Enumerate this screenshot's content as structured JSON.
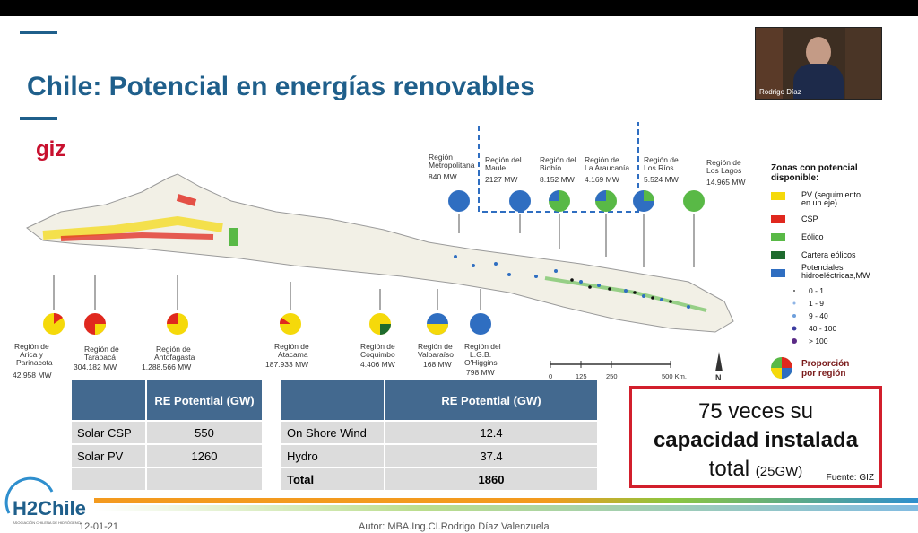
{
  "slide": {
    "title": "Chile: Potencial en energías renovables",
    "giz_logo": "giz",
    "date": "12-01-21",
    "author": "Autor: MBA.Ing.CI.Rodrigo Díaz Valenzuela",
    "h2chile_logo": "H2Chile",
    "h2chile_sub": "ASOCIACIÓN CHILENA DE HIDRÓGENO"
  },
  "webcam": {
    "participant_name": "Rodrigo Díaz"
  },
  "map": {
    "regions_bottom": [
      {
        "name": "Región de\nArica y\nParinacota",
        "mw": "42.958 MW",
        "icon": "pie-yellow-red"
      },
      {
        "name": "Región de\nTarapacá",
        "mw": "304.182 MW",
        "icon": "pie-red-yellow"
      },
      {
        "name": "Región de\nAntofagasta",
        "mw": "1.288.566 MW",
        "icon": "pie-yellow-red"
      },
      {
        "name": "Región de\nAtacama",
        "mw": "187.933 MW",
        "icon": "pie-yellow-red"
      },
      {
        "name": "Región de\nCoquimbo",
        "mw": "4.406 MW",
        "icon": "pie-yellow-green"
      },
      {
        "name": "Región de\nValparaíso",
        "mw": "168 MW",
        "icon": "pie-blue-yellow"
      },
      {
        "name": "Región del\nL.G.B.\nO'Higgins",
        "mw": "798 MW",
        "icon": "pie-blue"
      }
    ],
    "regions_top": [
      {
        "name": "Región\nMetropolitana",
        "mw": "840 MW",
        "icon": "pie-blue"
      },
      {
        "name": "Región del\nMaule",
        "mw": "2127 MW",
        "icon": "pie-blue"
      },
      {
        "name": "Región del\nBiobío",
        "mw": "8.152 MW",
        "icon": "pie-green-blue"
      },
      {
        "name": "Región de\nLa Araucanía",
        "mw": "4.169 MW",
        "icon": "pie-green-blue"
      },
      {
        "name": "Región de\nLos Ríos",
        "mw": "5.524 MW",
        "icon": "pie-blue-green"
      },
      {
        "name": "Región de\nLos Lagos",
        "mw": "14.965 MW",
        "icon": "pie-green"
      }
    ],
    "legend": {
      "title": "Zonas con potencial disponible:",
      "items": [
        {
          "label": "PV (seguimiento en un eje)",
          "color": "#f5d90a"
        },
        {
          "label": "CSP",
          "color": "#e0281e"
        },
        {
          "label": "Eólico",
          "color": "#59b946"
        },
        {
          "label": "Cartera eólicos",
          "color": "#1e6b2e"
        },
        {
          "label": "Potenciales hidroeléctricas,MW",
          "color": "#2f6ec1"
        }
      ],
      "sizes": [
        "0 - 1",
        "1 - 9",
        "9 - 40",
        "40 - 100",
        "> 100"
      ],
      "proportion_label": "Proporción por región"
    },
    "scale": {
      "ticks": [
        "0",
        "125",
        "250",
        "500 Km."
      ],
      "north": "N"
    }
  },
  "table_left": {
    "header": [
      "",
      "RE Potential (GW)"
    ],
    "rows": [
      [
        "Solar CSP",
        "550"
      ],
      [
        "Solar PV",
        "1260"
      ],
      [
        "",
        ""
      ]
    ]
  },
  "table_right": {
    "header": [
      "",
      "RE Potential (GW)"
    ],
    "rows": [
      [
        "On Shore Wind",
        "12.4"
      ],
      [
        "Hydro",
        "37.4"
      ],
      [
        "Total",
        "1860"
      ]
    ]
  },
  "callout": {
    "line1": "75 veces su",
    "line2": "capacidad instalada",
    "line3": "total",
    "line3_small": "(25GW)",
    "source": "Fuente: GIZ"
  }
}
